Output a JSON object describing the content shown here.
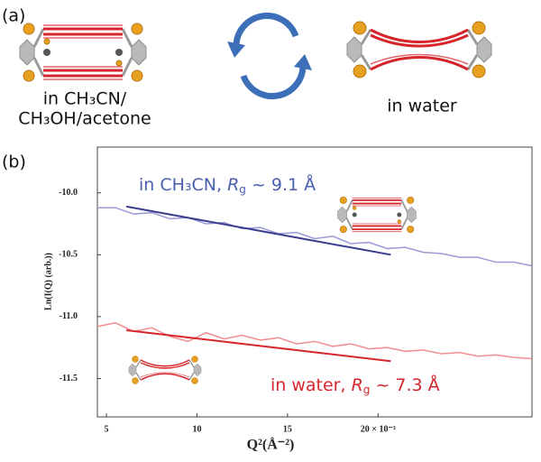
{
  "panel_a": {
    "label": "(a)",
    "left_caption": [
      "in CH₃CN/",
      "CH₃OH/acetone"
    ],
    "right_caption": "in water"
  },
  "chart_data": {
    "type": "line",
    "panel_label": "(b)",
    "x_label": "Q²(Å⁻²)",
    "y_label": "Ln(I(Q) (arb.))",
    "xlim": [
      4.5,
      28.5
    ],
    "ylim": [
      -11.81,
      -9.63
    ],
    "xticks": [
      5,
      10,
      15,
      {
        "value": 20,
        "label": "20 × 10⁻³"
      }
    ],
    "yticks": [
      {
        "value": -10,
        "label": "-10.0"
      },
      -10.5,
      {
        "value": -11,
        "label": "-11.0"
      },
      -11.5
    ],
    "series": [
      {
        "annotation": [
          "in CH₃CN, ",
          "R",
          "g",
          " ~ 9.1 Å"
        ],
        "color": "#9a9ad6",
        "x": [
          4.5,
          5.5,
          6.5,
          7.5,
          8.5,
          9.5,
          10.5,
          11.5,
          12.5,
          13.5,
          14.5,
          15.5,
          16.5,
          17.5,
          18.5,
          19.5,
          20.5,
          21.5,
          22.5,
          23.5,
          24.5,
          25.5,
          26.5,
          27.5,
          28.5
        ],
        "values": [
          -10.12,
          -10.12,
          -10.17,
          -10.16,
          -10.21,
          -10.2,
          -10.25,
          -10.24,
          -10.29,
          -10.28,
          -10.33,
          -10.32,
          -10.37,
          -10.35,
          -10.41,
          -10.4,
          -10.45,
          -10.44,
          -10.48,
          -10.49,
          -10.52,
          -10.52,
          -10.56,
          -10.56,
          -10.59
        ],
        "fit": {
          "color": "#3a3a8e",
          "x": [
            6.1,
            20.7
          ],
          "values": [
            -10.11,
            -10.5
          ]
        }
      },
      {
        "annotation": [
          "in water, ",
          "R",
          "g",
          " ~ 7.3 Å"
        ],
        "color": "#ef8d8f",
        "x": [
          4.5,
          5.5,
          6.5,
          7.5,
          8.5,
          9.5,
          10.5,
          11.5,
          12.5,
          13.5,
          14.5,
          15.5,
          16.5,
          17.5,
          18.5,
          19.5,
          20.5,
          21.5,
          22.5,
          23.5,
          24.5,
          25.5,
          26.5,
          27.5,
          28.5
        ],
        "values": [
          -11.08,
          -11.05,
          -11.12,
          -11.09,
          -11.16,
          -11.2,
          -11.13,
          -11.18,
          -11.15,
          -11.19,
          -11.17,
          -11.22,
          -11.2,
          -11.24,
          -11.22,
          -11.26,
          -11.25,
          -11.28,
          -11.27,
          -11.3,
          -11.29,
          -11.32,
          -11.31,
          -11.33,
          -11.34
        ],
        "fit": {
          "color": "#d6262b",
          "x": [
            6.1,
            20.7
          ],
          "values": [
            -11.11,
            -11.36
          ]
        }
      }
    ]
  }
}
